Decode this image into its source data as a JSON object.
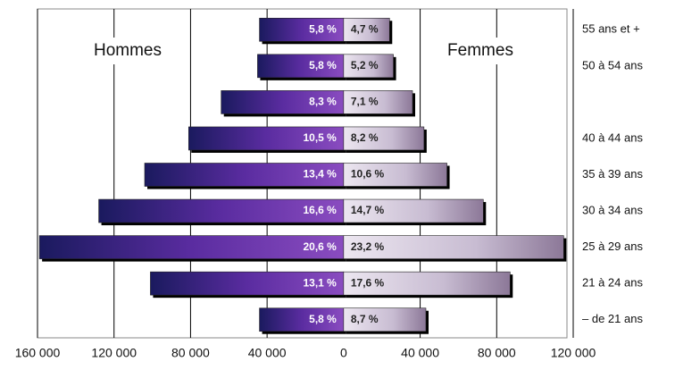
{
  "chart_data": {
    "type": "pyramid",
    "categories": [
      "55 ans et +",
      "50 à 54 ans",
      null,
      "40 à 44 ans",
      "35 à 39 ans",
      "30 à 34 ans",
      "25 à 29 ans",
      "21 à 24 ans",
      "– de 21 ans"
    ],
    "series": [
      {
        "name": "Hommes",
        "side": "left",
        "color": "#7a3fb3",
        "values": [
          44000,
          45000,
          64000,
          81000,
          104000,
          128000,
          159000,
          101000,
          44000
        ],
        "share_labels": [
          "5,8 %",
          "5,8 %",
          "8,3 %",
          "10,5 %",
          "13,4 %",
          "16,6 %",
          "20,6 %",
          "13,1 %",
          "5,8 %"
        ]
      },
      {
        "name": "Femmes",
        "side": "right",
        "color": "#d4c8dc",
        "values": [
          24000,
          26000,
          36000,
          42000,
          54000,
          73000,
          115000,
          87000,
          43000
        ],
        "share_labels": [
          "4,7 %",
          "5,2 %",
          "7,1 %",
          "8,2 %",
          "10,6 %",
          "14,7 %",
          "23,2 %",
          "17,6 %",
          "8,7 %"
        ]
      }
    ],
    "xlim": [
      -160000,
      120000
    ],
    "xticks": [
      {
        "value": -160000,
        "label": "160 000"
      },
      {
        "value": -120000,
        "label": "120 000"
      },
      {
        "value": -80000,
        "label": "80 000"
      },
      {
        "value": -40000,
        "label": "40 000"
      },
      0,
      {
        "value": 40000,
        "label": "40 000"
      },
      {
        "value": 80000,
        "label": "80 000"
      },
      {
        "value": 120000,
        "label": "120 000"
      }
    ],
    "grid": true
  }
}
